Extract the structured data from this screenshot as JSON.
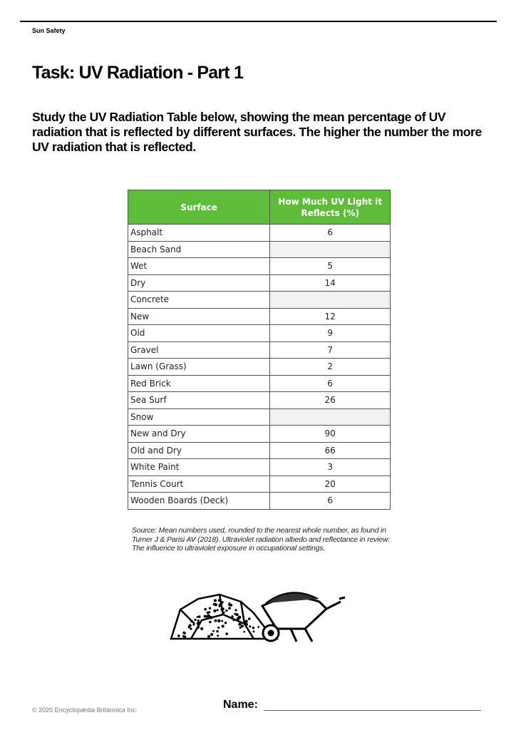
{
  "header": {
    "label": "Sun Safety"
  },
  "title": "Task: UV Radiation - Part 1",
  "intro": "Study the UV Radiation Table below, showing the mean percentage of UV radiation that is reflected by different surfaces. The higher the number the more UV radiation that is reflected.",
  "table": {
    "header_color": "#5fbb3a",
    "columns": [
      "Surface",
      "How Much UV Light it Reflects (%)"
    ],
    "rows": [
      {
        "surface": "Asphalt",
        "value": "6"
      },
      {
        "surface": "Beach Sand",
        "value": ""
      },
      {
        "surface": "Wet",
        "value": "5"
      },
      {
        "surface": "Dry",
        "value": "14"
      },
      {
        "surface": "Concrete",
        "value": ""
      },
      {
        "surface": "New",
        "value": "12"
      },
      {
        "surface": "Old",
        "value": "9"
      },
      {
        "surface": "Gravel",
        "value": "7"
      },
      {
        "surface": "Lawn (Grass)",
        "value": "2"
      },
      {
        "surface": "Red Brick",
        "value": "6"
      },
      {
        "surface": "Sea Surf",
        "value": "26"
      },
      {
        "surface": "Snow",
        "value": ""
      },
      {
        "surface": "New and Dry",
        "value": "90"
      },
      {
        "surface": "Old and Dry",
        "value": "66"
      },
      {
        "surface": "White Paint",
        "value": "3"
      },
      {
        "surface": "Tennis Court",
        "value": "20"
      },
      {
        "surface": "Wooden Boards (Deck)",
        "value": "6"
      }
    ]
  },
  "source": "Source: Mean numbers used, rounded to the nearest whole number, as found in Turner J & Parisi AV (2018). Ultraviolet radiation albedo and reflectance in review: The influence to ultraviolet exposure in occupational settings.",
  "illustration": "gravel-pile-and-wheelbarrow",
  "footer": {
    "copyright": "© 2020 Encyclopædia Britannica Inc.",
    "name_label": "Name:"
  }
}
